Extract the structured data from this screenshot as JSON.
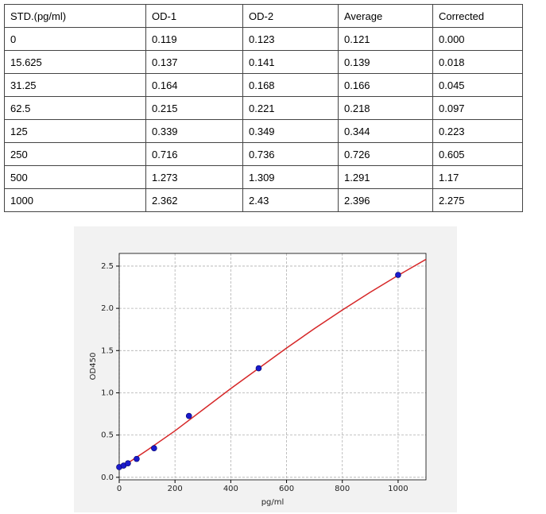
{
  "table": {
    "header": [
      "STD.(pg/ml)",
      "OD-1",
      "OD-2",
      "Average",
      "Corrected"
    ],
    "rows": [
      [
        "0",
        "0.119",
        "0.123",
        "0.121",
        "0.000"
      ],
      [
        "15.625",
        "0.137",
        "0.141",
        "0.139",
        "0.018"
      ],
      [
        "31.25",
        "0.164",
        "0.168",
        "0.166",
        "0.045"
      ],
      [
        "62.5",
        "0.215",
        "0.221",
        "0.218",
        "0.097"
      ],
      [
        "125",
        "0.339",
        "0.349",
        "0.344",
        "0.223"
      ],
      [
        "250",
        "0.716",
        "0.736",
        "0.726",
        "0.605"
      ],
      [
        "500",
        "1.273",
        "1.309",
        "1.291",
        "1.17"
      ],
      [
        "1000",
        "2.362",
        "2.43",
        "2.396",
        "2.275"
      ]
    ]
  },
  "chart_data": {
    "type": "scatter",
    "x_label": "pg/ml",
    "y_label": "OD450",
    "xlim": [
      0,
      1100
    ],
    "ylim": [
      -0.03,
      2.65
    ],
    "xticks": [
      0,
      200,
      400,
      600,
      800,
      1000
    ],
    "yticks": [
      {
        "value": 0,
        "label": "0.0"
      },
      0.5,
      {
        "value": 1,
        "label": "1.0"
      },
      1.5,
      {
        "value": 2,
        "label": "2.0"
      },
      2.5
    ],
    "grid": true,
    "series": [
      {
        "type": "scatter",
        "color": "#1a1acc",
        "x": [
          0,
          15.625,
          31.25,
          62.5,
          125,
          250,
          500,
          1000
        ],
        "values": [
          0.121,
          0.139,
          0.166,
          0.218,
          0.344,
          0.726,
          1.291,
          2.396
        ]
      },
      {
        "type": "line",
        "color": "#d62728",
        "x": [
          0,
          100,
          200,
          300,
          400,
          500,
          600,
          700,
          800,
          900,
          1000,
          1100
        ],
        "values": [
          0.1,
          0.32,
          0.55,
          0.8,
          1.05,
          1.29,
          1.53,
          1.76,
          1.98,
          2.19,
          2.39,
          2.58
        ]
      }
    ]
  }
}
